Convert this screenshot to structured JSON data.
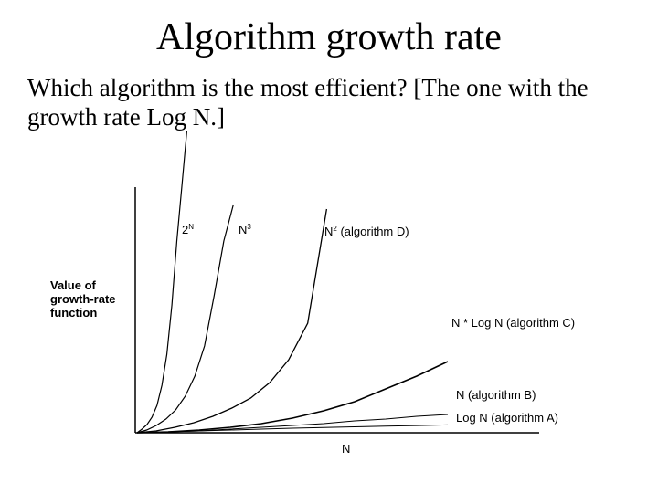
{
  "slide": {
    "title": "Algorithm growth rate",
    "body": "Which algorithm is the most efficient? [The one with the growth rate Log N.]"
  },
  "chart_data": {
    "type": "line",
    "xlabel": "N",
    "ylabel_lines": [
      "Value of",
      "growth-rate",
      "function"
    ],
    "grid": false,
    "x": [
      0,
      1,
      2,
      3,
      4,
      5,
      6,
      7,
      8,
      9,
      10
    ],
    "series": [
      {
        "name": "2N",
        "base": "2",
        "sup": "N",
        "values": [
          0,
          4,
          9,
          17,
          30,
          52,
          86,
          140,
          210,
          270,
          330
        ]
      },
      {
        "name": "N3",
        "base": "N",
        "sup": "3",
        "values": [
          0,
          3,
          8,
          15,
          25,
          40,
          62,
          95,
          150,
          210,
          250
        ]
      },
      {
        "name": "N2 (algorithm D)",
        "base": "N",
        "sup": "2",
        "rest": " (algorithm D)",
        "values": [
          0,
          2,
          6,
          11,
          18,
          27,
          38,
          55,
          80,
          120,
          245
        ]
      },
      {
        "name": "N * Log N  (algorithm C)",
        "values": [
          0,
          1,
          3,
          6,
          10,
          16,
          24,
          34,
          48,
          62,
          78
        ]
      },
      {
        "name": "N  (algorithm B)",
        "values": [
          0,
          1,
          2,
          4,
          6,
          8,
          10,
          13,
          15,
          18,
          20
        ]
      },
      {
        "name": "Log N  (algorithm A)",
        "values": [
          0,
          1,
          2,
          3,
          4,
          5,
          5.8,
          6.5,
          7.2,
          7.9,
          8.6
        ]
      }
    ]
  }
}
